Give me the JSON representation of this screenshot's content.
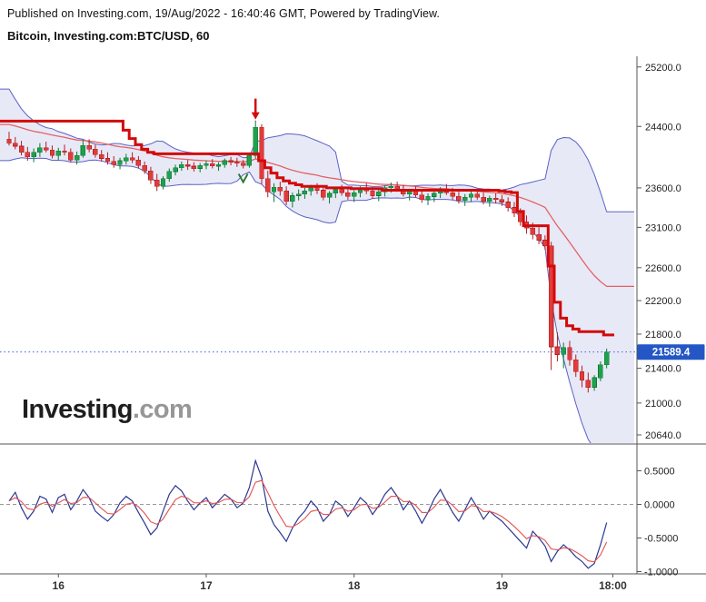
{
  "header": {
    "published": "Published on Investing.com, 19/Aug/2022 - 16:40:46 GMT, Powered by TradingView.",
    "instrument": "Bitcoin, Investing.com:BTC/USD, 60"
  },
  "watermark": {
    "name": "Investing",
    "suffix": ".com"
  },
  "colors": {
    "up": "#1fa14c",
    "up_border": "#0e7a33",
    "down": "#e23b3b",
    "down_border": "#b02020",
    "band_fill": "rgba(98,105,200,0.15)",
    "band_line": "#5a62c6",
    "trend": "#d20a0a",
    "ma": "#e36262",
    "price_line": "#3c64d8",
    "badge": "#2457c5",
    "osc_blue": "#2b3990",
    "osc_red": "#e05252",
    "axis_text": "#222222",
    "axis_line": "#555555",
    "zero_line": "#999999"
  },
  "chart_data": {
    "type": "candlestick",
    "title": "Bitcoin, Investing.com:BTC/USD, 60",
    "interval_minutes": 60,
    "y_axis": {
      "scale": "log",
      "ticks": [
        25200.0,
        24400.0,
        23600.0,
        23100.0,
        22600.0,
        22200.0,
        21800.0,
        21400.0,
        21000.0,
        20640.0
      ],
      "current_price": 21589.4
    },
    "x_axis": {
      "labels": [
        {
          "label": "16",
          "candle_index": 8
        },
        {
          "label": "17",
          "candle_index": 32
        },
        {
          "label": "18",
          "candle_index": 56
        },
        {
          "label": "19",
          "candle_index": 80
        },
        {
          "label": "18:00",
          "candle_index": 98
        }
      ]
    },
    "bollinger": {
      "period": 14,
      "mult": 2
    },
    "ma": {
      "type": "ema",
      "period": 28
    },
    "warmup_closes": [
      25050,
      24950,
      24850,
      24700,
      24550,
      24450,
      24380,
      24300,
      24330,
      24270,
      24300,
      24250,
      24210,
      24240
    ],
    "candles_ohlc": [
      [
        24230,
        24330,
        24150,
        24180
      ],
      [
        24180,
        24260,
        24100,
        24140
      ],
      [
        24140,
        24210,
        24020,
        24060
      ],
      [
        24060,
        24130,
        23950,
        24000
      ],
      [
        24000,
        24110,
        23930,
        24060
      ],
      [
        24060,
        24180,
        24000,
        24120
      ],
      [
        24120,
        24200,
        24060,
        24090
      ],
      [
        24090,
        24150,
        23980,
        24020
      ],
      [
        24020,
        24120,
        23960,
        24080
      ],
      [
        24080,
        24160,
        24020,
        24060
      ],
      [
        24060,
        24110,
        23930,
        23960
      ],
      [
        23960,
        24070,
        23900,
        24020
      ],
      [
        24020,
        24220,
        23990,
        24150
      ],
      [
        24150,
        24230,
        24060,
        24100
      ],
      [
        24100,
        24160,
        23990,
        24030
      ],
      [
        24030,
        24090,
        23940,
        23980
      ],
      [
        23980,
        24060,
        23900,
        23940
      ],
      [
        23940,
        24010,
        23860,
        23900
      ],
      [
        23900,
        23990,
        23840,
        23950
      ],
      [
        23950,
        24040,
        23900,
        23990
      ],
      [
        23990,
        24060,
        23920,
        23960
      ],
      [
        23960,
        24010,
        23850,
        23890
      ],
      [
        23890,
        23940,
        23780,
        23820
      ],
      [
        23820,
        23870,
        23650,
        23700
      ],
      [
        23700,
        23780,
        23560,
        23620
      ],
      [
        23620,
        23750,
        23580,
        23720
      ],
      [
        23720,
        23850,
        23680,
        23810
      ],
      [
        23810,
        23900,
        23760,
        23860
      ],
      [
        23860,
        23940,
        23820,
        23900
      ],
      [
        23900,
        23960,
        23830,
        23880
      ],
      [
        23880,
        23930,
        23810,
        23850
      ],
      [
        23850,
        23920,
        23800,
        23890
      ],
      [
        23890,
        23950,
        23840,
        23910
      ],
      [
        23910,
        23970,
        23850,
        23880
      ],
      [
        23880,
        23930,
        23820,
        23900
      ],
      [
        23900,
        23980,
        23860,
        23950
      ],
      [
        23950,
        24000,
        23890,
        23930
      ],
      [
        23930,
        23990,
        23870,
        23920
      ],
      [
        23920,
        23960,
        23850,
        23890
      ],
      [
        23890,
        24050,
        23860,
        24020
      ],
      [
        24020,
        24480,
        23980,
        24390
      ],
      [
        24390,
        24430,
        23650,
        23720
      ],
      [
        23720,
        23820,
        23480,
        23550
      ],
      [
        23550,
        23660,
        23420,
        23610
      ],
      [
        23610,
        23680,
        23500,
        23560
      ],
      [
        23560,
        23620,
        23380,
        23430
      ],
      [
        23430,
        23540,
        23350,
        23500
      ],
      [
        23500,
        23580,
        23440,
        23520
      ],
      [
        23520,
        23600,
        23460,
        23560
      ],
      [
        23560,
        23640,
        23500,
        23610
      ],
      [
        23610,
        23660,
        23520,
        23570
      ],
      [
        23570,
        23620,
        23440,
        23480
      ],
      [
        23480,
        23560,
        23400,
        23530
      ],
      [
        23530,
        23610,
        23470,
        23580
      ],
      [
        23580,
        23640,
        23500,
        23540
      ],
      [
        23540,
        23600,
        23450,
        23490
      ],
      [
        23490,
        23570,
        23420,
        23540
      ],
      [
        23540,
        23620,
        23480,
        23590
      ],
      [
        23590,
        23660,
        23520,
        23560
      ],
      [
        23560,
        23610,
        23460,
        23500
      ],
      [
        23500,
        23580,
        23430,
        23550
      ],
      [
        23550,
        23630,
        23490,
        23600
      ],
      [
        23600,
        23670,
        23540,
        23620
      ],
      [
        23620,
        23680,
        23550,
        23580
      ],
      [
        23580,
        23640,
        23490,
        23520
      ],
      [
        23520,
        23590,
        23440,
        23560
      ],
      [
        23560,
        23620,
        23480,
        23510
      ],
      [
        23510,
        23570,
        23410,
        23450
      ],
      [
        23450,
        23530,
        23380,
        23490
      ],
      [
        23490,
        23560,
        23420,
        23530
      ],
      [
        23530,
        23610,
        23470,
        23580
      ],
      [
        23580,
        23650,
        23510,
        23540
      ],
      [
        23540,
        23600,
        23450,
        23490
      ],
      [
        23490,
        23550,
        23400,
        23440
      ],
      [
        23440,
        23520,
        23370,
        23480
      ],
      [
        23480,
        23560,
        23420,
        23520
      ],
      [
        23520,
        23590,
        23450,
        23480
      ],
      [
        23480,
        23540,
        23390,
        23430
      ],
      [
        23430,
        23500,
        23360,
        23470
      ],
      [
        23470,
        23530,
        23400,
        23450
      ],
      [
        23450,
        23510,
        23370,
        23420
      ],
      [
        23420,
        23480,
        23300,
        23350
      ],
      [
        23350,
        23420,
        23230,
        23280
      ],
      [
        23280,
        23340,
        23120,
        23170
      ],
      [
        23170,
        23250,
        23020,
        23090
      ],
      [
        23090,
        23160,
        22950,
        23010
      ],
      [
        23010,
        23100,
        22890,
        22940
      ],
      [
        22940,
        23000,
        22820,
        22870
      ],
      [
        22870,
        22920,
        21380,
        21650
      ],
      [
        21650,
        21820,
        21480,
        21560
      ],
      [
        21560,
        21700,
        21400,
        21640
      ],
      [
        21640,
        21720,
        21430,
        21500
      ],
      [
        21500,
        21560,
        21300,
        21360
      ],
      [
        21360,
        21430,
        21180,
        21260
      ],
      [
        21260,
        21350,
        21120,
        21180
      ],
      [
        21180,
        21320,
        21140,
        21290
      ],
      [
        21290,
        21480,
        21250,
        21440
      ],
      [
        21440,
        21630,
        21400,
        21589.4
      ]
    ],
    "supertrend_line": [
      24470,
      24470,
      24470,
      24470,
      24470,
      24470,
      24470,
      24470,
      24470,
      24470,
      24470,
      24470,
      24470,
      24470,
      24470,
      24470,
      24470,
      24470,
      24470,
      24350,
      24240,
      24160,
      24100,
      24060,
      24040,
      24040,
      24040,
      24040,
      24040,
      24040,
      24040,
      24040,
      24040,
      24040,
      24040,
      24040,
      24040,
      24040,
      24040,
      24040,
      24040,
      23950,
      23860,
      23790,
      23730,
      23690,
      23660,
      23640,
      23620,
      23620,
      23620,
      23620,
      23600,
      23600,
      23600,
      23600,
      23590,
      23590,
      23590,
      23590,
      23590,
      23570,
      23570,
      23570,
      23570,
      23570,
      23570,
      23570,
      23570,
      23570,
      23570,
      23570,
      23570,
      23570,
      23570,
      23570,
      23570,
      23570,
      23570,
      23570,
      23560,
      23550,
      23540,
      23300,
      23120,
      23120,
      23120,
      23120,
      22620,
      22180,
      21990,
      21900,
      21860,
      21830,
      21830,
      21830,
      21830,
      21790
    ],
    "oscillator_panel": {
      "ticks": [
        0.5,
        0.0,
        -0.5,
        -1.0
      ],
      "red_line": {
        "type": "ema_of_blue",
        "period": 4
      },
      "blue_values": [
        0.05,
        0.18,
        -0.05,
        -0.22,
        -0.1,
        0.12,
        0.08,
        -0.12,
        0.1,
        0.15,
        -0.08,
        0.05,
        0.22,
        0.1,
        -0.1,
        -0.18,
        -0.25,
        -0.15,
        0.02,
        0.12,
        0.05,
        -0.12,
        -0.28,
        -0.45,
        -0.35,
        -0.1,
        0.15,
        0.28,
        0.2,
        0.05,
        -0.08,
        0.02,
        0.1,
        -0.05,
        0.05,
        0.15,
        0.08,
        -0.05,
        0.02,
        0.25,
        0.65,
        0.4,
        -0.1,
        -0.3,
        -0.42,
        -0.55,
        -0.35,
        -0.2,
        -0.1,
        0.05,
        -0.05,
        -0.25,
        -0.15,
        0.05,
        -0.02,
        -0.18,
        -0.05,
        0.1,
        0.02,
        -0.15,
        -0.02,
        0.15,
        0.25,
        0.12,
        -0.08,
        0.05,
        -0.1,
        -0.28,
        -0.12,
        0.08,
        0.22,
        0.05,
        -0.12,
        -0.25,
        -0.08,
        0.1,
        -0.05,
        -0.22,
        -0.1,
        -0.18,
        -0.25,
        -0.35,
        -0.45,
        -0.55,
        -0.65,
        -0.4,
        -0.5,
        -0.62,
        -0.85,
        -0.7,
        -0.6,
        -0.68,
        -0.78,
        -0.85,
        -0.95,
        -0.88,
        -0.6,
        -0.27
      ]
    },
    "annotations": [
      {
        "type": "arrow-down",
        "candle_index": 40,
        "color": "#d20a0a"
      },
      {
        "type": "check-mark",
        "candle_index": 38,
        "color": "#2e7d32"
      }
    ]
  }
}
